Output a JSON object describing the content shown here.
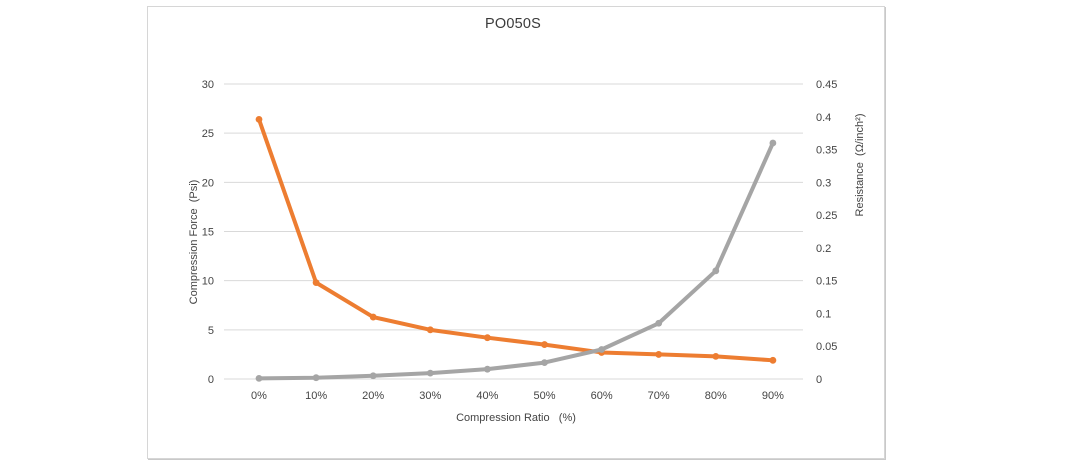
{
  "chart_data": {
    "type": "line",
    "title": "PO050S",
    "x_categories": [
      "0%",
      "10%",
      "20%",
      "30%",
      "40%",
      "50%",
      "60%",
      "70%",
      "80%",
      "90%"
    ],
    "xlabel": "Compression Ratio   (%)",
    "left_axis": {
      "label": "Compression Force  (Psi)",
      "ticks": [
        0,
        5,
        10,
        15,
        20,
        25,
        30
      ],
      "range": [
        0,
        30
      ]
    },
    "right_axis": {
      "label": "Resistance  (Ω/inch²)",
      "ticks": [
        0,
        0.05,
        0.1,
        0.15,
        0.2,
        0.25,
        0.3,
        0.35,
        0.4,
        0.45
      ],
      "range": [
        0,
        0.45
      ]
    },
    "series": [
      {
        "name": "Compression Force",
        "axis": "left",
        "color": "#ED7D31",
        "values": [
          26.4,
          9.8,
          6.3,
          5.0,
          4.2,
          3.5,
          2.7,
          2.5,
          2.3,
          1.9
        ]
      },
      {
        "name": "Resistance",
        "axis": "right",
        "color": "#A5A5A5",
        "values": [
          0.001,
          0.002,
          0.005,
          0.009,
          0.015,
          0.025,
          0.045,
          0.085,
          0.165,
          0.36
        ]
      }
    ],
    "grid": true,
    "legend": false,
    "colors": {
      "gridline": "#D9D9D9",
      "axis_text": "#444444",
      "title_text": "#3B3B3B",
      "panel_border": "#D6D6D6"
    }
  }
}
